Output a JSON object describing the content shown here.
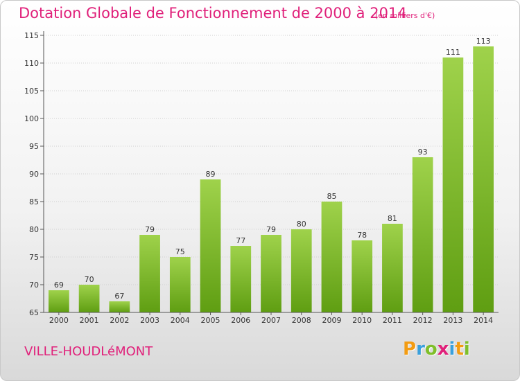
{
  "title": "Dotation Globale de Fonctionnement de 2000 à 2014",
  "subtitle": "(en milliers d'€)",
  "commune": "VILLE-HOUDLéMONT",
  "logo": {
    "text": "Proxiti",
    "letters": [
      {
        "ch": "P",
        "color": "#f39c12"
      },
      {
        "ch": "r",
        "color": "#3aa0dc"
      },
      {
        "ch": "o",
        "color": "#7fbf2a"
      },
      {
        "ch": "x",
        "color": "#e0207a"
      },
      {
        "ch": "i",
        "color": "#3aa0dc"
      },
      {
        "ch": "t",
        "color": "#f39c12"
      },
      {
        "ch": "i",
        "color": "#7fbf2a"
      }
    ]
  },
  "colors": {
    "title": "#e0207a",
    "bar_top": "#9fd24b",
    "bar_bottom": "#5f9e12",
    "grid": "#d0d0d0",
    "axis": "#555555"
  },
  "chart_data": {
    "type": "bar",
    "title": "Dotation Globale de Fonctionnement de 2000 à 2014",
    "xlabel": "",
    "ylabel": "",
    "categories": [
      "2000",
      "2001",
      "2002",
      "2003",
      "2004",
      "2005",
      "2006",
      "2007",
      "2008",
      "2009",
      "2010",
      "2011",
      "2012",
      "2013",
      "2014"
    ],
    "values": [
      69,
      70,
      67,
      79,
      75,
      89,
      77,
      79,
      80,
      85,
      78,
      81,
      93,
      111,
      113
    ],
    "ylim": [
      65,
      115
    ],
    "yticks": [
      65,
      70,
      75,
      80,
      85,
      90,
      95,
      100,
      105,
      110,
      115
    ],
    "grid": true
  }
}
